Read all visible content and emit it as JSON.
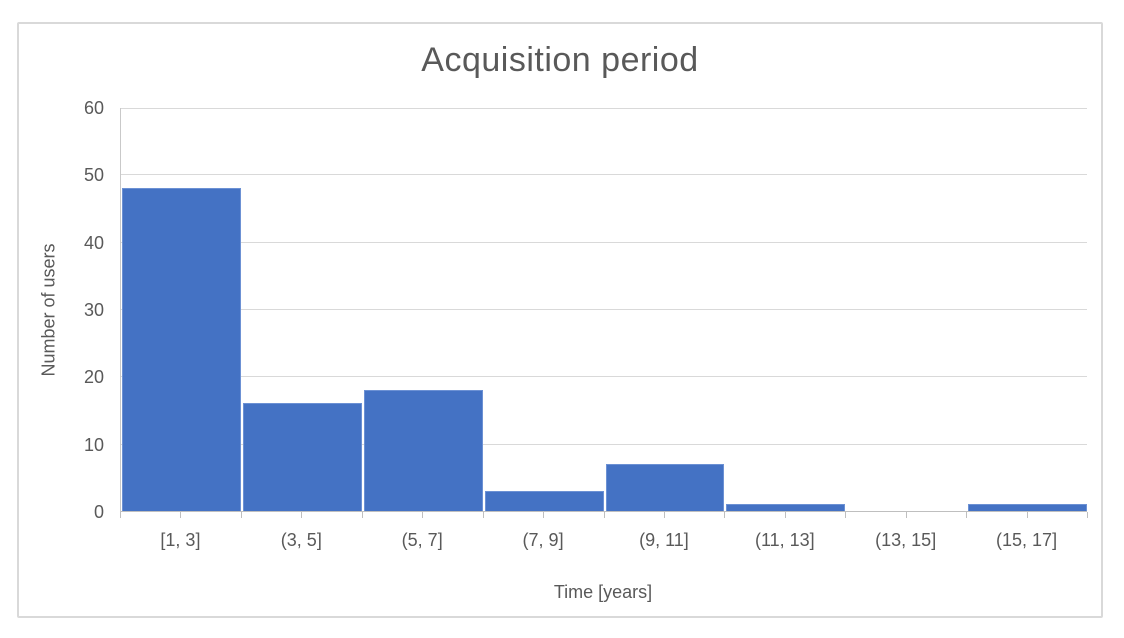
{
  "chart_data": {
    "type": "bar",
    "title": "Acquisition period",
    "xlabel": "Time [years]",
    "ylabel": "Number of users",
    "categories": [
      "[1, 3]",
      "(3, 5]",
      "(5, 7]",
      "(7, 9]",
      "(9, 11]",
      "(11, 13]",
      "(13, 15]",
      "(15, 17]"
    ],
    "values": [
      48,
      16,
      18,
      3,
      7,
      1,
      0,
      1
    ],
    "ylim": [
      0,
      60
    ],
    "ytick_step": 10,
    "yticks": [
      0,
      10,
      20,
      30,
      40,
      50,
      60
    ],
    "grid": "horizontal",
    "legend": "none",
    "x_tick_marks": "boundaries-and-midpoints",
    "colors": {
      "bar": "#4472C4",
      "bar_border": "#6C91D4",
      "text": "#595959",
      "gridline": "#D9D9D9",
      "axis_line": "#BFBFBF",
      "frame_border": "#D9D9D9",
      "background": "#FFFFFF"
    }
  }
}
